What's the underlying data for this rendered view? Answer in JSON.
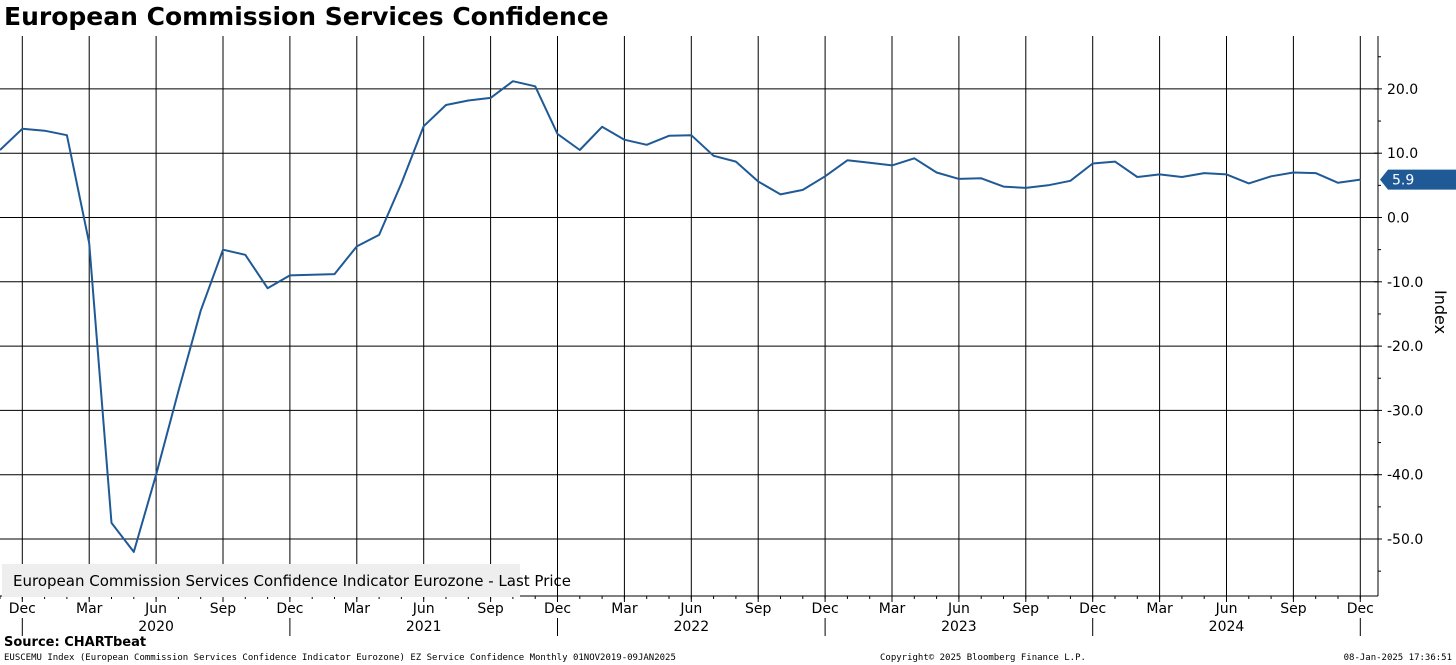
{
  "title": "European Commission Services Confidence",
  "source": "Source: CHARTbeat",
  "footer": {
    "left": "EUSCEMU Index (European Commission Services Confidence Indicator Eurozone) EZ Service Confidence  Monthly 01NOV2019-09JAN2025",
    "middle": "Copyright© 2025 Bloomberg Finance L.P.",
    "right": "08-Jan-2025 17:36:51"
  },
  "colors": {
    "line": "#1f5a96",
    "grid": "#000000",
    "legend_bg": "#eeeeee",
    "tag_bg": "#1f5a96"
  },
  "chart_data": {
    "type": "line",
    "title": "European Commission Services Confidence",
    "ylabel": "Index",
    "ylim": [
      -58,
      28
    ],
    "yticks": [
      "20.0",
      "10.0",
      "0.0",
      "-10.0",
      "-20.0",
      "-30.0",
      "-40.0",
      "-50.0"
    ],
    "ytick_values": [
      20,
      10,
      0,
      -10,
      -20,
      -30,
      -40,
      -50
    ],
    "x_start": "2019-11",
    "month_ticks": [
      "Dec",
      "Mar",
      "Jun",
      "Sep",
      "Dec",
      "Mar",
      "Jun",
      "Sep",
      "Dec",
      "Mar",
      "Jun",
      "Sep",
      "Dec",
      "Mar",
      "Jun",
      "Sep",
      "Dec",
      "Mar",
      "Jun",
      "Sep",
      "Dec"
    ],
    "year_labels": [
      "2020",
      "2021",
      "2022",
      "2023",
      "2024"
    ],
    "grid": true,
    "legend_position": "bottom-left",
    "last_value_label": "5.9",
    "series": [
      {
        "name": "European Commission Services Confidence Indicator Eurozone - Last Price",
        "x": [
          "2019-11",
          "2019-12",
          "2020-01",
          "2020-02",
          "2020-03",
          "2020-04",
          "2020-05",
          "2020-06",
          "2020-07",
          "2020-08",
          "2020-09",
          "2020-10",
          "2020-11",
          "2020-12",
          "2021-01",
          "2021-02",
          "2021-03",
          "2021-04",
          "2021-05",
          "2021-06",
          "2021-07",
          "2021-08",
          "2021-09",
          "2021-10",
          "2021-11",
          "2021-12",
          "2022-01",
          "2022-02",
          "2022-03",
          "2022-04",
          "2022-05",
          "2022-06",
          "2022-07",
          "2022-08",
          "2022-09",
          "2022-10",
          "2022-11",
          "2022-12",
          "2023-01",
          "2023-02",
          "2023-03",
          "2023-04",
          "2023-05",
          "2023-06",
          "2023-07",
          "2023-08",
          "2023-09",
          "2023-10",
          "2023-11",
          "2023-12",
          "2024-01",
          "2024-02",
          "2024-03",
          "2024-04",
          "2024-05",
          "2024-06",
          "2024-07",
          "2024-08",
          "2024-09",
          "2024-10",
          "2024-11",
          "2024-12"
        ],
        "values": [
          10.5,
          13.8,
          13.5,
          12.8,
          -4.0,
          -47.5,
          -52.0,
          -40.0,
          -27.0,
          -14.5,
          -5.0,
          -5.8,
          -11.0,
          -9.0,
          -8.9,
          -8.8,
          -4.5,
          -2.7,
          5.3,
          14.2,
          17.5,
          18.2,
          18.6,
          21.2,
          20.4,
          13.0,
          10.5,
          14.1,
          12.1,
          11.3,
          12.7,
          12.8,
          9.6,
          8.7,
          5.6,
          3.6,
          4.3,
          6.4,
          8.9,
          8.5,
          8.1,
          9.2,
          7.0,
          6.0,
          6.1,
          4.8,
          4.6,
          5.0,
          5.7,
          8.4,
          8.7,
          6.3,
          6.7,
          6.3,
          6.9,
          6.7,
          5.3,
          6.4,
          7.0,
          6.9,
          5.4,
          5.9
        ]
      }
    ]
  }
}
